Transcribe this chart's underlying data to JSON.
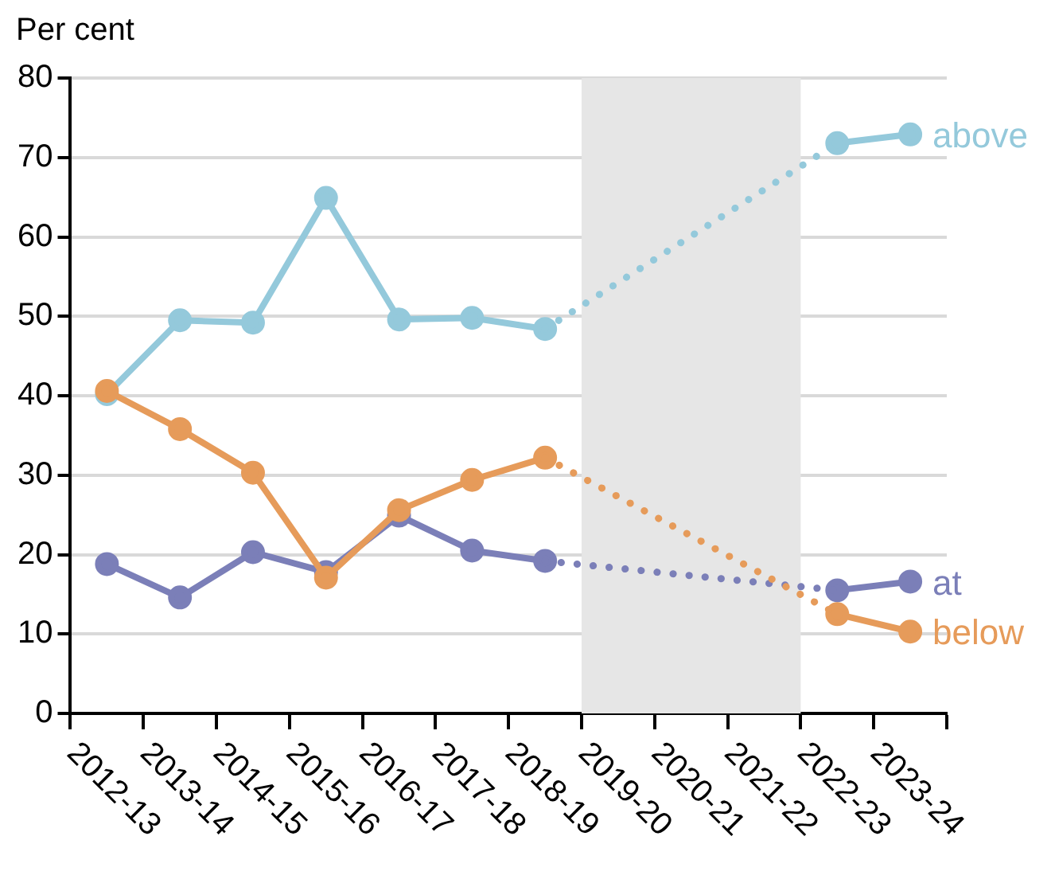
{
  "chart_data": {
    "type": "line",
    "ylabel": "Per cent",
    "categories": [
      "2012-13",
      "2013-14",
      "2014-15",
      "2015-16",
      "2016-17",
      "2017-18",
      "2018-19",
      "2019-20",
      "2020-21",
      "2021-22",
      "2022-23",
      "2023-24"
    ],
    "series": [
      {
        "name": "above",
        "color": "#94c9db",
        "values": [
          40.2,
          49.5,
          49.2,
          64.9,
          49.6,
          49.8,
          48.4,
          null,
          null,
          null,
          71.8,
          72.9
        ]
      },
      {
        "name": "at",
        "color": "#7b7fb8",
        "values": [
          18.8,
          14.6,
          20.3,
          17.8,
          24.9,
          20.5,
          19.2,
          null,
          null,
          null,
          15.5,
          16.6
        ]
      },
      {
        "name": "below",
        "color": "#e69b5a",
        "values": [
          40.6,
          35.8,
          30.3,
          17.1,
          25.6,
          29.4,
          32.2,
          null,
          null,
          null,
          12.5,
          10.3
        ]
      }
    ],
    "bands": [
      {
        "axis": "x",
        "from": "2019-20",
        "to": "2021-22",
        "color": "#e6e6e6"
      }
    ],
    "ylim": [
      0,
      80
    ],
    "yticks": [
      0,
      10,
      20,
      30,
      40,
      50,
      60,
      70,
      80
    ],
    "grid": "y",
    "legend": false,
    "marker": "circle",
    "line_style": "solid"
  }
}
